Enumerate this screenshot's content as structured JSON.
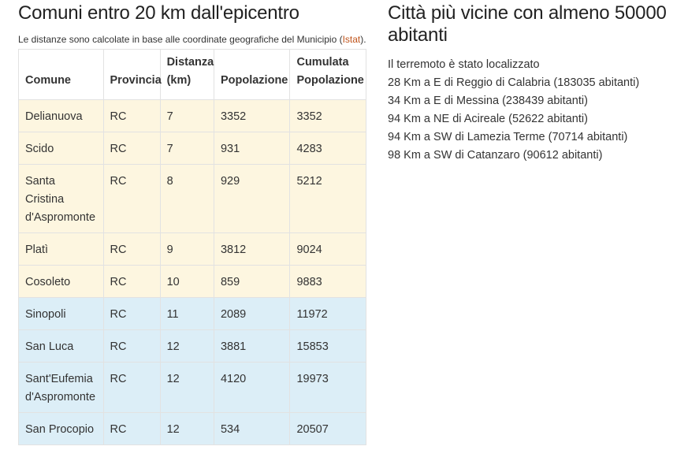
{
  "left": {
    "title": "Comuni entro 20 km dall'epicentro",
    "note_text": "Le distanze sono calcolate in base alle coordinate geografiche del Municipio (",
    "note_link": "Istat",
    "note_end": ").",
    "headers": [
      "Comune",
      "Provincia",
      "Distanza (km)",
      "Popolazione",
      "Cumulata Popolazione"
    ],
    "rows": [
      {
        "comune": "Delianuova",
        "provincia": "RC",
        "distanza": "7",
        "popolazione": "3352",
        "cumulata": "3352"
      },
      {
        "comune": "Scido",
        "provincia": "RC",
        "distanza": "7",
        "popolazione": "931",
        "cumulata": "4283"
      },
      {
        "comune": "Santa Cristina d'Aspromonte",
        "provincia": "RC",
        "distanza": "8",
        "popolazione": "929",
        "cumulata": "5212"
      },
      {
        "comune": "Platì",
        "provincia": "RC",
        "distanza": "9",
        "popolazione": "3812",
        "cumulata": "9024"
      },
      {
        "comune": "Cosoleto",
        "provincia": "RC",
        "distanza": "10",
        "popolazione": "859",
        "cumulata": "9883"
      },
      {
        "comune": "Sinopoli",
        "provincia": "RC",
        "distanza": "11",
        "popolazione": "2089",
        "cumulata": "11972"
      },
      {
        "comune": "San Luca",
        "provincia": "RC",
        "distanza": "12",
        "popolazione": "3881",
        "cumulata": "15853"
      },
      {
        "comune": "Sant'Eufemia d'Aspromonte",
        "provincia": "RC",
        "distanza": "12",
        "popolazione": "4120",
        "cumulata": "19973"
      },
      {
        "comune": "San Procopio",
        "provincia": "RC",
        "distanza": "12",
        "popolazione": "534",
        "cumulata": "20507"
      }
    ]
  },
  "right": {
    "title": "Città più vicine con almeno 50000 abitanti",
    "intro": "Il terremoto è stato localizzato",
    "items": [
      "28 Km a E di Reggio di Calabria (183035 abitanti)",
      "34 Km a E di Messina (238439 abitanti)",
      "94 Km a NE di Acireale (52622 abitanti)",
      "94 Km a SW di Lamezia Terme (70714 abitanti)",
      "98 Km a SW di Catanzaro (90612 abitanti)"
    ]
  },
  "colors": {
    "near_row": "#fdf6e0",
    "far_row": "#dceef7",
    "link": "#c0541b"
  }
}
